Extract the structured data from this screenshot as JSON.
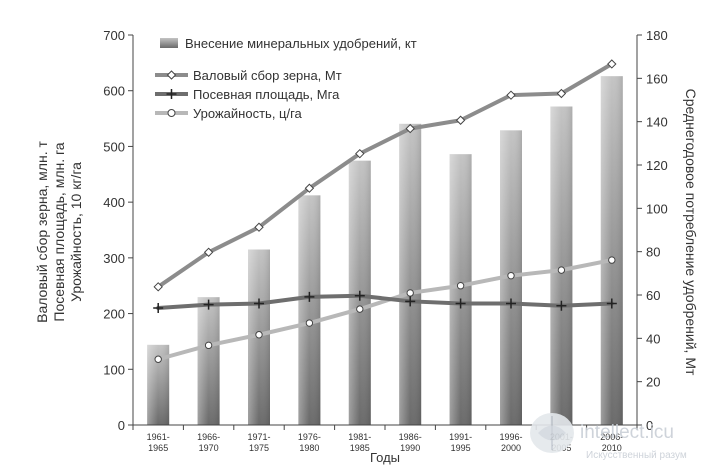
{
  "chart_data": {
    "type": "bar",
    "categories": [
      [
        "1961-",
        "1965"
      ],
      [
        "1966-",
        "1970"
      ],
      [
        "1971-",
        "1975"
      ],
      [
        "1976-",
        "1980"
      ],
      [
        "1981-",
        "1985"
      ],
      [
        "1986-",
        "1990"
      ],
      [
        "1991-",
        "1995"
      ],
      [
        "1996-",
        "2000"
      ],
      [
        "2001-",
        "2005"
      ],
      [
        "2006-",
        "2010"
      ]
    ],
    "xlabel": "Годы",
    "ylabel_left": [
      "Валовый сбор зерна, млн. т",
      "Посевная площадь, млн. га",
      "Урожайность, 10 кг/га"
    ],
    "ylabel_right": "Среднегодовое потребление удобрений, Мт",
    "ylim_left": [
      0,
      700
    ],
    "yticks_left": [
      0,
      100,
      200,
      300,
      400,
      500,
      600,
      700
    ],
    "ylim_right": [
      0,
      180
    ],
    "yticks_right": [
      0,
      20,
      40,
      60,
      80,
      100,
      120,
      140,
      160,
      180
    ],
    "grid": false,
    "legend_position": "top-left",
    "series": [
      {
        "name": "Внесение минеральных удобрений, кт",
        "kind": "bar",
        "axis": "right",
        "color": "#9a9a9a",
        "values": [
          37,
          59,
          81,
          106,
          122,
          139,
          125,
          136,
          147,
          161
        ]
      },
      {
        "name": "Валовый сбор зерна, Мт",
        "kind": "line",
        "axis": "left",
        "color": "#8c8c8c",
        "marker": "diamond",
        "values": [
          248,
          310,
          355,
          425,
          487,
          532,
          547,
          592,
          595,
          648
        ]
      },
      {
        "name": "Посевная площадь, Мга",
        "kind": "line",
        "axis": "left",
        "color": "#6e6e6e",
        "marker": "plus",
        "values": [
          210,
          216,
          218,
          230,
          232,
          222,
          218,
          218,
          214,
          218
        ]
      },
      {
        "name": "Урожайность, ц/га",
        "kind": "line",
        "axis": "left",
        "color": "#b8b8b8",
        "marker": "circle",
        "values": [
          118,
          143,
          162,
          183,
          208,
          237,
          250,
          268,
          278,
          296
        ]
      }
    ]
  },
  "watermark": {
    "text": "intellect.icu",
    "subtext": "Искусственный разум",
    "icon": "brain-logo-icon"
  }
}
